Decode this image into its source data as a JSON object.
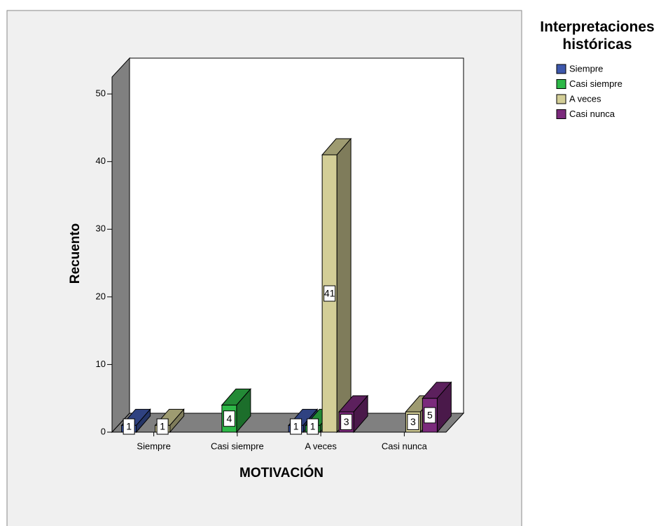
{
  "chart_data": {
    "type": "bar3d",
    "x_label": "MOTIVACIÓN",
    "y_label": "Recuento",
    "legend_title": "Interpretaciones históricas",
    "categories": [
      "Siempre",
      "Casi siempre",
      "A veces",
      "Casi nunca"
    ],
    "series": [
      {
        "name": "Siempre",
        "color": "#3e58ac",
        "values": [
          1,
          null,
          1,
          null
        ]
      },
      {
        "name": "Casi siempre",
        "color": "#2eb848",
        "values": [
          null,
          4,
          1,
          null
        ]
      },
      {
        "name": "A veces",
        "color": "#d3ce97",
        "values": [
          1,
          null,
          41,
          3
        ]
      },
      {
        "name": "Casi nunca",
        "color": "#7b2a7c",
        "values": [
          null,
          null,
          3,
          5
        ]
      }
    ],
    "ylim": [
      0,
      52.5
    ],
    "yticks": [
      0,
      10,
      20,
      30,
      40,
      50
    ],
    "legend": "right"
  }
}
